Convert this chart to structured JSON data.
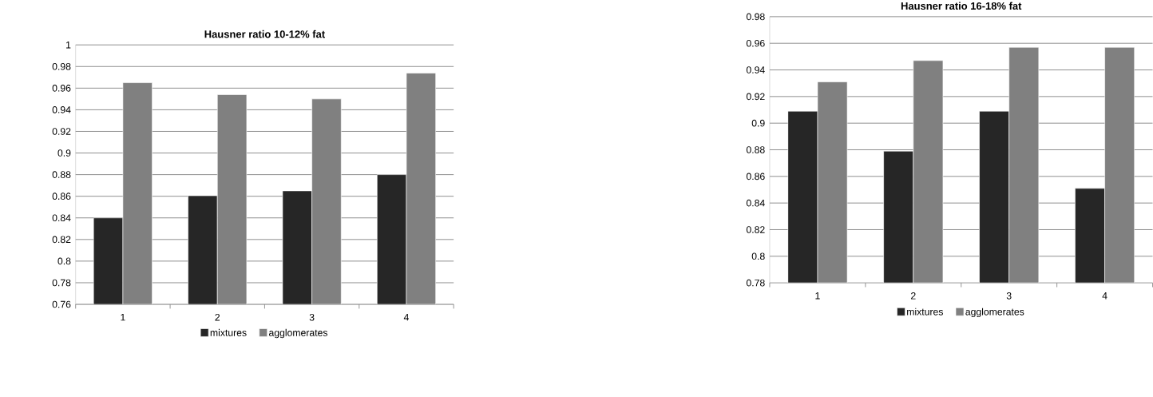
{
  "chart_data": [
    {
      "type": "bar",
      "title": "Hausner ratio 10-12% fat",
      "categories": [
        "1",
        "2",
        "3",
        "4"
      ],
      "series": [
        {
          "name": "mixtures",
          "color": "#262626",
          "values": [
            0.84,
            0.8605,
            0.865,
            0.88
          ]
        },
        {
          "name": "agglomerates",
          "color": "#808080",
          "values": [
            0.965,
            0.954,
            0.95,
            0.974
          ]
        }
      ],
      "ylim": [
        0.76,
        1
      ],
      "yticks": [
        0.76,
        0.78,
        0.8,
        0.82,
        0.84,
        0.86,
        0.88,
        0.9,
        0.92,
        0.94,
        0.96,
        0.98,
        1
      ],
      "grid": "y",
      "legend": "bottom"
    },
    {
      "type": "bar",
      "title": "Hausner ratio 16-18% fat",
      "categories": [
        "1",
        "2",
        "3",
        "4"
      ],
      "series": [
        {
          "name": "mixtures",
          "color": "#262626",
          "values": [
            0.909,
            0.879,
            0.909,
            0.851
          ]
        },
        {
          "name": "agglomerates",
          "color": "#808080",
          "values": [
            0.931,
            0.947,
            0.957,
            0.957
          ]
        }
      ],
      "ylim": [
        0.78,
        0.98
      ],
      "yticks": [
        0.78,
        0.8,
        0.82,
        0.84,
        0.86,
        0.88,
        0.9,
        0.92,
        0.94,
        0.96,
        0.98
      ],
      "grid": "y",
      "legend": "bottom"
    }
  ]
}
